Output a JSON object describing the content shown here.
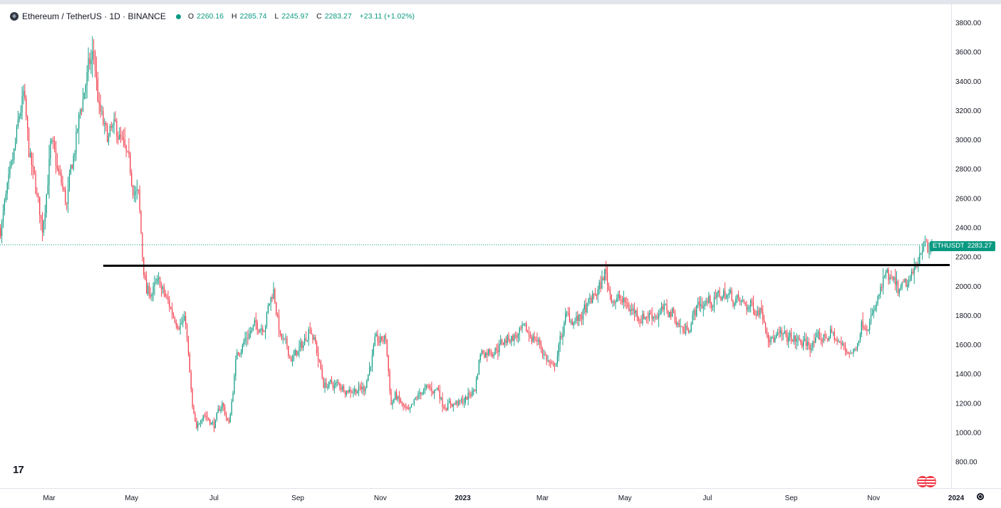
{
  "legend": {
    "title": "Ethereum / TetherUS · 1D · BINANCE",
    "o_key": "O",
    "o": "2260.16",
    "h_key": "H",
    "h": "2285.74",
    "l_key": "L",
    "l": "2245.97",
    "c_key": "C",
    "c": "2283.27",
    "change": "+23.11 (+1.02%)"
  },
  "price_tag": {
    "symbol": "ETHUSDT",
    "value": "2283.27"
  },
  "icons": {
    "symbol": "ethereum-logo-icon",
    "status": "market-status-dot-icon",
    "logo": "tradingview-logo-icon",
    "events": "economic-events-icon",
    "settings": "settings-gear-icon"
  },
  "colors": {
    "up": "#089981",
    "down": "#f23645",
    "level_line": "#000000",
    "last_price": "#089981"
  },
  "chart_data": {
    "type": "candlestick",
    "title": "Ethereum / TetherUS · 1D · BINANCE",
    "symbol": "ETHUSDT",
    "interval": "1D",
    "exchange": "BINANCE",
    "ylim": [
      720,
      3880
    ],
    "y_ticks": [
      "800.00",
      "1000.00",
      "1200.00",
      "1400.00",
      "1600.00",
      "1800.00",
      "2000.00",
      "2200.00",
      "2400.00",
      "2600.00",
      "2800.00",
      "3000.00",
      "3200.00",
      "3400.00",
      "3600.00",
      "3800.00"
    ],
    "x_ticks": [
      {
        "label": "Mar",
        "date": "2022-03-01"
      },
      {
        "label": "May",
        "date": "2022-05-01"
      },
      {
        "label": "Jul",
        "date": "2022-07-01"
      },
      {
        "label": "Sep",
        "date": "2022-09-01"
      },
      {
        "label": "Nov",
        "date": "2022-11-01"
      },
      {
        "label": "2023",
        "date": "2023-01-01"
      },
      {
        "label": "Mar",
        "date": "2023-03-01"
      },
      {
        "label": "May",
        "date": "2023-05-01"
      },
      {
        "label": "Jul",
        "date": "2023-07-01"
      },
      {
        "label": "Sep",
        "date": "2023-09-01"
      },
      {
        "label": "Nov",
        "date": "2023-11-01"
      },
      {
        "label": "2024",
        "date": "2024-01-01"
      }
    ],
    "date_range": [
      "2022-01-24",
      "2023-12-14"
    ],
    "last_price": 2283.27,
    "horizontal_level": {
      "price": 2140,
      "from_date": "2022-04-10",
      "to_date": "2024-01-10"
    },
    "price_path": [
      [
        "2022-01-24",
        2400
      ],
      [
        "2022-02-01",
        2750
      ],
      [
        "2022-02-08",
        3200
      ],
      [
        "2022-02-10",
        3280
      ],
      [
        "2022-02-14",
        2900
      ],
      [
        "2022-02-24",
        2400
      ],
      [
        "2022-03-02",
        2950
      ],
      [
        "2022-03-14",
        2550
      ],
      [
        "2022-03-20",
        2950
      ],
      [
        "2022-03-28",
        3400
      ],
      [
        "2022-04-03",
        3580
      ],
      [
        "2022-04-07",
        3200
      ],
      [
        "2022-04-12",
        3000
      ],
      [
        "2022-04-21",
        3050
      ],
      [
        "2022-04-30",
        2750
      ],
      [
        "2022-05-06",
        2600
      ],
      [
        "2022-05-09",
        2200
      ],
      [
        "2022-05-12",
        1950
      ],
      [
        "2022-05-22",
        2000
      ],
      [
        "2022-06-01",
        1800
      ],
      [
        "2022-06-10",
        1750
      ],
      [
        "2022-06-15",
        1150
      ],
      [
        "2022-06-18",
        1000
      ],
      [
        "2022-06-23",
        1150
      ],
      [
        "2022-07-01",
        1050
      ],
      [
        "2022-07-07",
        1200
      ],
      [
        "2022-07-12",
        1050
      ],
      [
        "2022-07-18",
        1550
      ],
      [
        "2022-07-28",
        1700
      ],
      [
        "2022-08-07",
        1750
      ],
      [
        "2022-08-14",
        1980
      ],
      [
        "2022-08-19",
        1650
      ],
      [
        "2022-08-28",
        1500
      ],
      [
        "2022-09-05",
        1600
      ],
      [
        "2022-09-10",
        1750
      ],
      [
        "2022-09-14",
        1600
      ],
      [
        "2022-09-20",
        1330
      ],
      [
        "2022-10-01",
        1320
      ],
      [
        "2022-10-10",
        1300
      ],
      [
        "2022-10-20",
        1300
      ],
      [
        "2022-10-28",
        1600
      ],
      [
        "2022-11-05",
        1640
      ],
      [
        "2022-11-09",
        1200
      ],
      [
        "2022-11-12",
        1250
      ],
      [
        "2022-11-22",
        1120
      ],
      [
        "2022-12-01",
        1280
      ],
      [
        "2022-12-14",
        1300
      ],
      [
        "2022-12-17",
        1200
      ],
      [
        "2022-12-31",
        1200
      ],
      [
        "2023-01-10",
        1300
      ],
      [
        "2023-01-14",
        1550
      ],
      [
        "2023-01-25",
        1580
      ],
      [
        "2023-02-05",
        1650
      ],
      [
        "2023-02-15",
        1680
      ],
      [
        "2023-02-24",
        1650
      ],
      [
        "2023-03-09",
        1420
      ],
      [
        "2023-03-18",
        1780
      ],
      [
        "2023-03-28",
        1770
      ],
      [
        "2023-04-05",
        1880
      ],
      [
        "2023-04-13",
        2000
      ],
      [
        "2023-04-16",
        2100
      ],
      [
        "2023-04-20",
        1950
      ],
      [
        "2023-04-30",
        1880
      ],
      [
        "2023-05-12",
        1800
      ],
      [
        "2023-05-27",
        1820
      ],
      [
        "2023-06-05",
        1820
      ],
      [
        "2023-06-14",
        1680
      ],
      [
        "2023-06-25",
        1880
      ],
      [
        "2023-07-05",
        1900
      ],
      [
        "2023-07-14",
        1950
      ],
      [
        "2023-07-27",
        1870
      ],
      [
        "2023-08-10",
        1850
      ],
      [
        "2023-08-17",
        1650
      ],
      [
        "2023-09-01",
        1640
      ],
      [
        "2023-09-12",
        1600
      ],
      [
        "2023-09-20",
        1620
      ],
      [
        "2023-09-30",
        1680
      ],
      [
        "2023-10-11",
        1560
      ],
      [
        "2023-10-18",
        1560
      ],
      [
        "2023-10-23",
        1750
      ],
      [
        "2023-11-01",
        1800
      ],
      [
        "2023-11-09",
        2050
      ],
      [
        "2023-11-16",
        2000
      ],
      [
        "2023-11-21",
        1950
      ],
      [
        "2023-11-30",
        2050
      ],
      [
        "2023-12-05",
        2250
      ],
      [
        "2023-12-08",
        2350
      ],
      [
        "2023-12-11",
        2200
      ],
      [
        "2023-12-14",
        2283.27
      ]
    ]
  }
}
